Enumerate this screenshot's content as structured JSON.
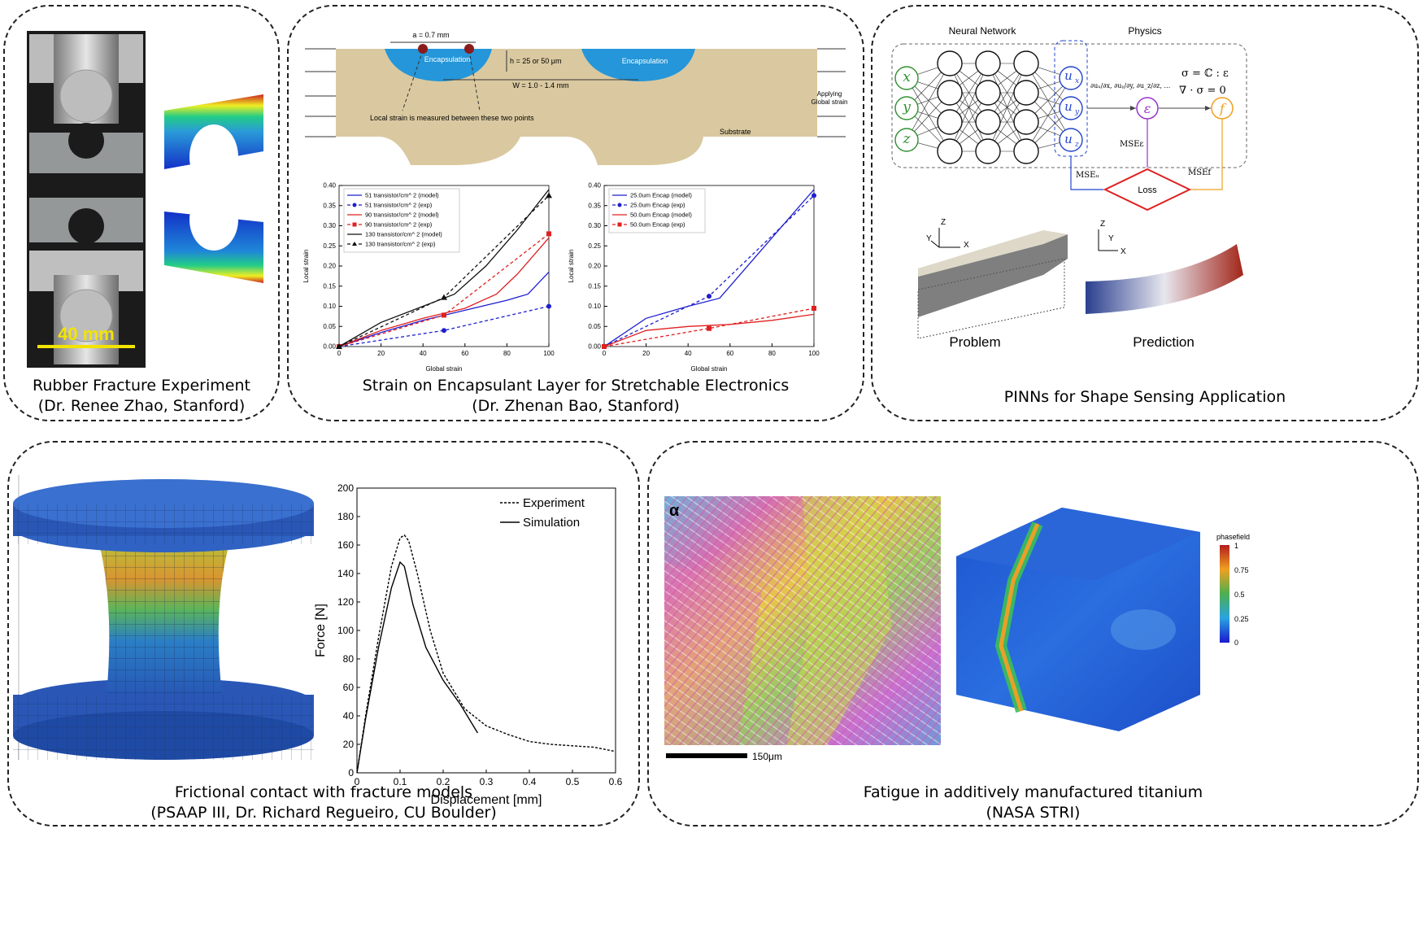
{
  "panels": {
    "rubber": {
      "caption1": "Rubber Fracture Experiment",
      "caption2": "(Dr. Renee Zhao, Stanford)",
      "scale_label": "40 mm"
    },
    "encap": {
      "caption1": "Strain on Encapsulant Layer for Stretchable Electronics",
      "caption2": "(Dr. Zhenan Bao, Stanford)",
      "diagram": {
        "a_label": "a = 0.7 mm",
        "h_label": "h = 25 or 50 μm",
        "w_label": "W = 1.0 - 1.4 mm",
        "encap_label_1": "Encapsulation",
        "encap_label_2": "Encapsulation",
        "local_strain_note": "Local strain is measured between these two points",
        "substrate": "Substrate",
        "applying_1": "Applying",
        "applying_2": "Global strain"
      }
    },
    "pinn": {
      "caption": "PINNs for Shape Sensing Application",
      "nn_title": "Neural Network",
      "physics_title": "Physics",
      "inputs": [
        "x",
        "y",
        "z"
      ],
      "outputs": [
        "u",
        "u",
        "u"
      ],
      "output_subs": [
        "x",
        "y",
        "z"
      ],
      "derivs": "∂uₓ/∂x, ∂uᵧ/∂y, ∂u_z/∂z, …",
      "eq1": "σ = ℂ : ε",
      "eq2": "∇ · σ = 0",
      "eps": "ε",
      "f": "f",
      "loss": "Loss",
      "mse_eps": "MSEε",
      "mse_u": "MSEᵤ",
      "mse_f": "MSEf",
      "problem": "Problem",
      "prediction": "Prediction",
      "axis_z": "Z",
      "axis_y": "Y",
      "axis_x": "X"
    },
    "contact": {
      "caption1": "Frictional contact with fracture models",
      "caption2": "(PSAAP III, Dr. Richard Regueiro, CU Boulder)"
    },
    "fatigue": {
      "caption1": "Fatigue in additively manufactured titanium",
      "caption2": "(NASA STRI)",
      "alpha": "α",
      "scale": "150μm",
      "colorbar_title": "phasefield",
      "colorbar_ticks": [
        "1",
        "0.75",
        "0.5",
        "0.25",
        "0"
      ]
    }
  },
  "chart_data": [
    {
      "type": "line",
      "xlabel": "Global strain",
      "ylabel": "Local strain",
      "xlim": [
        0,
        100
      ],
      "ylim": [
        0,
        0.4
      ],
      "xticks": [
        0,
        20,
        40,
        60,
        80,
        100
      ],
      "yticks": [
        0.0,
        0.05,
        0.1,
        0.15,
        0.2,
        0.25,
        0.3,
        0.35,
        0.4
      ],
      "legend_position": "top-left",
      "series": [
        {
          "name": "51 transistor/cm^ 2 (model)",
          "color": "#1f1fcf",
          "dash": false,
          "marker": "",
          "x": [
            0,
            20,
            40,
            60,
            80,
            90,
            100
          ],
          "y": [
            0,
            0.035,
            0.065,
            0.09,
            0.115,
            0.13,
            0.185
          ]
        },
        {
          "name": "51 transistor/cm^ 2 (exp)",
          "color": "#1f1fcf",
          "dash": true,
          "marker": "circle",
          "x": [
            0,
            50,
            100
          ],
          "y": [
            0,
            0.04,
            0.1
          ]
        },
        {
          "name": "90 transistor/cm^ 2 (model)",
          "color": "#e02020",
          "dash": false,
          "marker": "",
          "x": [
            0,
            20,
            40,
            60,
            75,
            85,
            100
          ],
          "y": [
            0,
            0.04,
            0.07,
            0.095,
            0.13,
            0.18,
            0.27
          ]
        },
        {
          "name": "90 transistor/cm^ 2 (exp)",
          "color": "#e02020",
          "dash": true,
          "marker": "square",
          "x": [
            0,
            50,
            100
          ],
          "y": [
            0,
            0.078,
            0.28
          ]
        },
        {
          "name": "130 transistor/cm^ 2 (model)",
          "color": "#111111",
          "dash": false,
          "marker": "",
          "x": [
            0,
            20,
            40,
            55,
            70,
            85,
            100
          ],
          "y": [
            0,
            0.06,
            0.1,
            0.13,
            0.2,
            0.29,
            0.39
          ]
        },
        {
          "name": "130 transistor/cm^ 2 (exp)",
          "color": "#111111",
          "dash": true,
          "marker": "triangle",
          "x": [
            0,
            50,
            100
          ],
          "y": [
            0,
            0.122,
            0.375
          ]
        }
      ]
    },
    {
      "type": "line",
      "xlabel": "Global strain",
      "ylabel": "Local strain",
      "xlim": [
        0,
        100
      ],
      "ylim": [
        0,
        0.4
      ],
      "xticks": [
        0,
        20,
        40,
        60,
        80,
        100
      ],
      "yticks": [
        0.0,
        0.05,
        0.1,
        0.15,
        0.2,
        0.25,
        0.3,
        0.35,
        0.4
      ],
      "legend_position": "top-left",
      "series": [
        {
          "name": "25.0um Encap (model)",
          "color": "#1f1fcf",
          "dash": false,
          "marker": "",
          "x": [
            0,
            20,
            40,
            55,
            60,
            80,
            100
          ],
          "y": [
            0,
            0.07,
            0.1,
            0.12,
            0.15,
            0.27,
            0.39
          ]
        },
        {
          "name": "25.0um Encap (exp)",
          "color": "#1f1fcf",
          "dash": true,
          "marker": "circle",
          "x": [
            0,
            50,
            100
          ],
          "y": [
            0,
            0.125,
            0.375
          ]
        },
        {
          "name": "50.0um Encap (model)",
          "color": "#e02020",
          "dash": false,
          "marker": "",
          "x": [
            0,
            20,
            40,
            60,
            80,
            100
          ],
          "y": [
            0,
            0.04,
            0.05,
            0.055,
            0.065,
            0.08
          ]
        },
        {
          "name": "50.0um Encap (exp)",
          "color": "#e02020",
          "dash": true,
          "marker": "square",
          "x": [
            0,
            50,
            100
          ],
          "y": [
            0,
            0.045,
            0.095
          ]
        }
      ]
    },
    {
      "type": "line",
      "xlabel": "Displacement [mm]",
      "ylabel": "Force [N]",
      "xlim": [
        0,
        0.6
      ],
      "ylim": [
        0,
        200
      ],
      "xticks": [
        0,
        0.1,
        0.2,
        0.3,
        0.4,
        0.5,
        0.6
      ],
      "yticks": [
        0,
        20,
        40,
        60,
        80,
        100,
        120,
        140,
        160,
        180,
        200
      ],
      "legend_position": "top-right",
      "series": [
        {
          "name": "Experiment",
          "color": "#000000",
          "dash": true,
          "marker": "",
          "x": [
            0,
            0.02,
            0.05,
            0.08,
            0.1,
            0.11,
            0.12,
            0.14,
            0.17,
            0.2,
            0.25,
            0.3,
            0.35,
            0.4,
            0.45,
            0.5,
            0.55,
            0.6
          ],
          "y": [
            0,
            40,
            95,
            145,
            165,
            167,
            163,
            140,
            100,
            70,
            45,
            33,
            27,
            22,
            20,
            19,
            18,
            15
          ]
        },
        {
          "name": "Simulation",
          "color": "#000000",
          "dash": false,
          "marker": "",
          "x": [
            0,
            0.02,
            0.05,
            0.08,
            0.1,
            0.11,
            0.13,
            0.16,
            0.2,
            0.24,
            0.28
          ],
          "y": [
            0,
            38,
            88,
            130,
            148,
            145,
            118,
            88,
            65,
            48,
            28
          ]
        }
      ]
    }
  ]
}
